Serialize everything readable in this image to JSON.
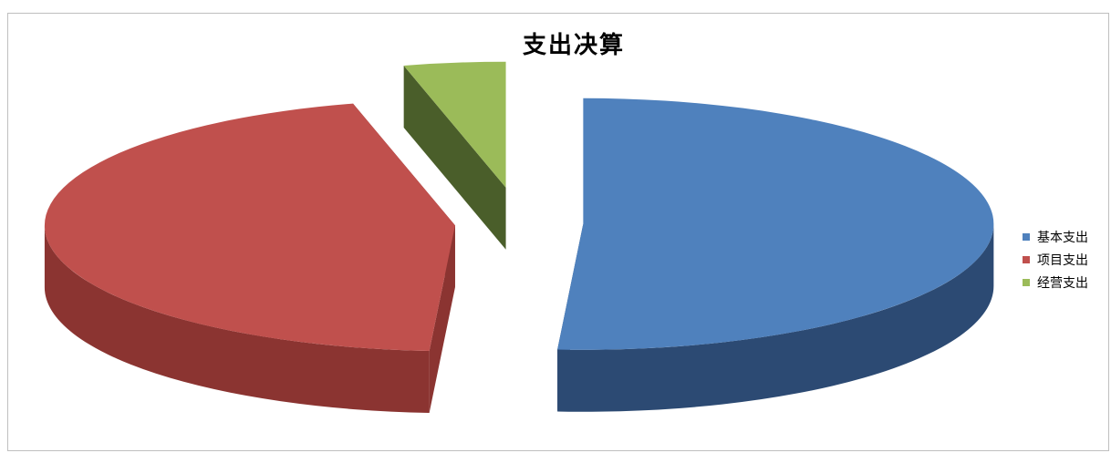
{
  "chart_data": {
    "type": "pie",
    "title": "支出决算",
    "categories": [
      "基本支出",
      "项目支出",
      "经营支出"
    ],
    "values": [
      51,
      45,
      4
    ],
    "colors": [
      "#4f81bd",
      "#c0504d",
      "#9bbb59"
    ],
    "side_colors": [
      "#2c4a73",
      "#8b3431",
      "#4a5e2a"
    ],
    "legend_position": "right",
    "style": "3d-exploded",
    "start_angle_deg": -90
  }
}
